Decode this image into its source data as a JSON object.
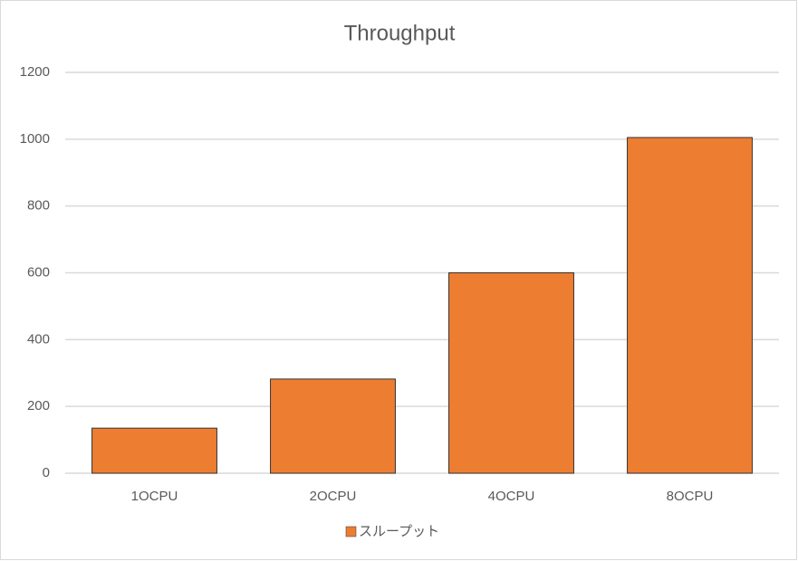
{
  "chart_data": {
    "type": "bar",
    "title": "Throughput",
    "categories": [
      "1OCPU",
      "2OCPU",
      "4OCPU",
      "8OCPU"
    ],
    "series": [
      {
        "name": "スループット",
        "color": "#ed7d31",
        "values": [
          135,
          282,
          600,
          1005
        ]
      }
    ],
    "ylim": [
      0,
      1200
    ],
    "yticks": [
      0,
      200,
      400,
      600,
      800,
      1000,
      1200
    ],
    "grid": true,
    "legend": "bottom"
  }
}
